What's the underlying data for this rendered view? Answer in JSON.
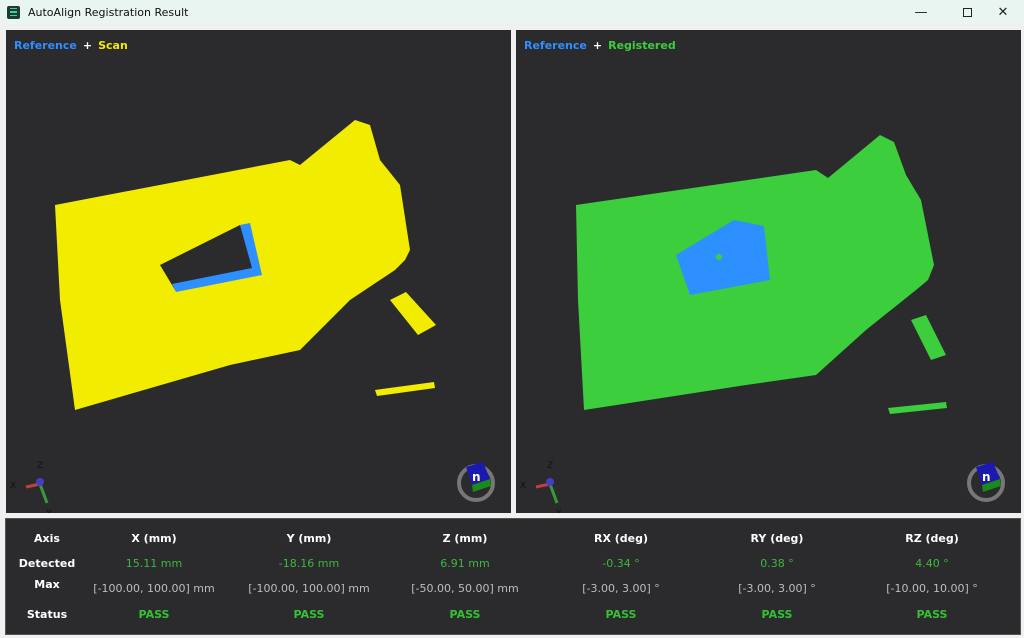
{
  "window": {
    "title": "AutoAlign Registration Result",
    "icon": "app-menu-icon",
    "controls": [
      "minimize",
      "maximize",
      "close"
    ]
  },
  "views": [
    {
      "label_ref": "Reference",
      "label_plus": "+",
      "label_other": "Scan",
      "cloud_color": "#f1ec00",
      "reference_color": "#2e8fff"
    },
    {
      "label_ref": "Reference",
      "label_plus": "+",
      "label_other": "Registered",
      "cloud_color": "#3cce3c",
      "reference_color": "#2e8fff"
    }
  ],
  "axes_gizmo": {
    "x": "X",
    "y": "Y",
    "z": "Z"
  },
  "table": {
    "row_labels": {
      "axis": "Axis",
      "detected": "Detected",
      "max": "Max",
      "status": "Status"
    },
    "columns": [
      {
        "axis": "X (mm)",
        "detected": "15.11 mm",
        "max": "[-100.00, 100.00] mm",
        "status": "PASS"
      },
      {
        "axis": "Y (mm)",
        "detected": "-18.16 mm",
        "max": "[-100.00, 100.00] mm",
        "status": "PASS"
      },
      {
        "axis": "Z (mm)",
        "detected": "6.91 mm",
        "max": "[-50.00, 50.00] mm",
        "status": "PASS"
      },
      {
        "axis": "RX (deg)",
        "detected": "-0.34 °",
        "max": "[-3.00, 3.00] °",
        "status": "PASS"
      },
      {
        "axis": "RY (deg)",
        "detected": "0.38 °",
        "max": "[-3.00, 3.00] °",
        "status": "PASS"
      },
      {
        "axis": "RZ (deg)",
        "detected": "4.40 °",
        "max": "[-10.00, 10.00] °",
        "status": "PASS"
      }
    ]
  }
}
